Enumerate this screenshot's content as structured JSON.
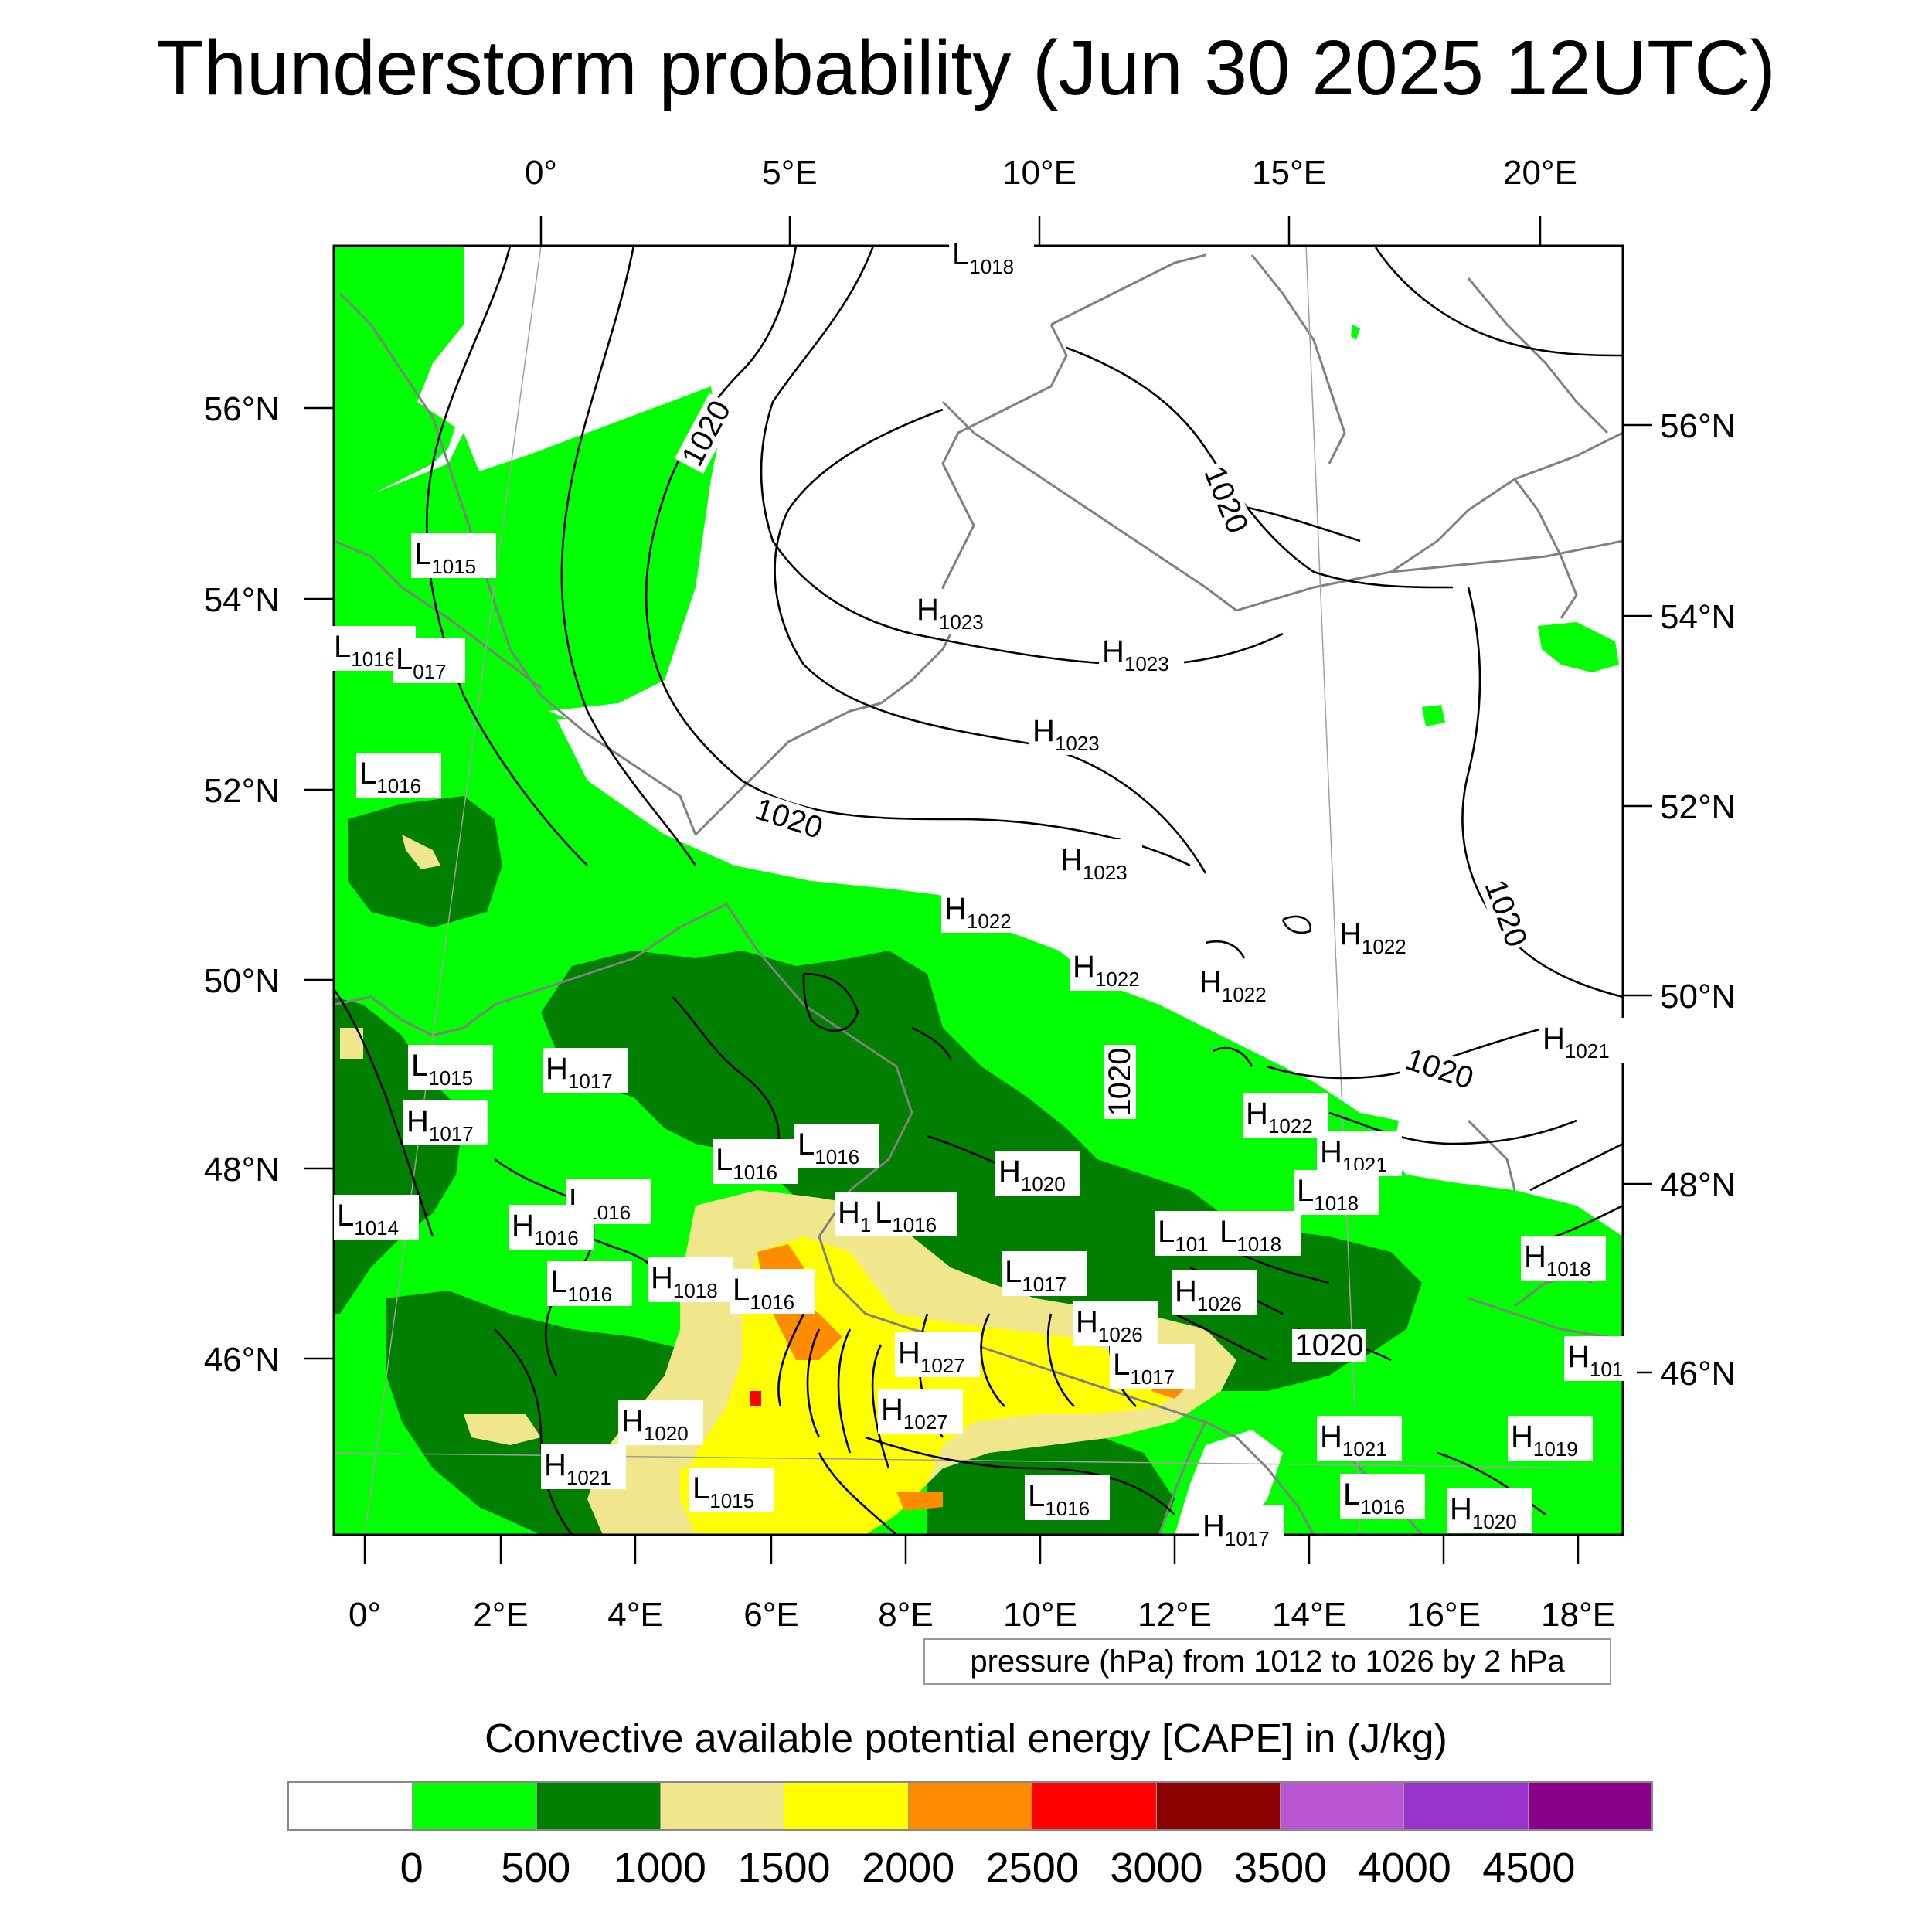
{
  "title": "Thunderstorm probability (Jun 30 2025 12UTC)",
  "lon_top_labels": [
    "0°",
    "5°E",
    "10°E",
    "15°E",
    "20°E"
  ],
  "lon_bottom_labels": [
    "0°",
    "2°E",
    "4°E",
    "6°E",
    "8°E",
    "10°E",
    "12°E",
    "14°E",
    "16°E",
    "18°E"
  ],
  "lat_left_labels": [
    "56°N",
    "54°N",
    "52°N",
    "50°N",
    "48°N",
    "46°N"
  ],
  "lat_right_labels": [
    "56°N",
    "54°N",
    "52°N",
    "50°N",
    "48°N",
    "46°N"
  ],
  "isobar_labels": [
    "1020",
    "1020",
    "1020",
    "1020",
    "1020",
    "1020",
    "1020"
  ],
  "pressure_centers": [
    {
      "t": "L",
      "v": "1018"
    },
    {
      "t": "L",
      "v": "1015"
    },
    {
      "t": "L",
      "v": "1016"
    },
    {
      "t": "L",
      "v": "017"
    },
    {
      "t": "L",
      "v": "1016"
    },
    {
      "t": "H",
      "v": "1023"
    },
    {
      "t": "H",
      "v": "1023"
    },
    {
      "t": "H",
      "v": "1023"
    },
    {
      "t": "H",
      "v": "1023"
    },
    {
      "t": "H",
      "v": "1022"
    },
    {
      "t": "H",
      "v": "1022"
    },
    {
      "t": "H",
      "v": "1022"
    },
    {
      "t": "H",
      "v": "1022"
    },
    {
      "t": "H",
      "v": "1021"
    },
    {
      "t": "L",
      "v": "1015"
    },
    {
      "t": "H",
      "v": "1017"
    },
    {
      "t": "H",
      "v": "1017"
    },
    {
      "t": "H",
      "v": "1022"
    },
    {
      "t": "H",
      "v": "1021"
    },
    {
      "t": "L",
      "v": "1016"
    },
    {
      "t": "L",
      "v": "1016"
    },
    {
      "t": "H",
      "v": "1020"
    },
    {
      "t": "L",
      "v": "1018"
    },
    {
      "t": "L",
      "v": "1016"
    },
    {
      "t": "L",
      "v": "1014"
    },
    {
      "t": "H",
      "v": "1016"
    },
    {
      "t": "H",
      "v": "1"
    },
    {
      "t": "L",
      "v": "1016"
    },
    {
      "t": "L",
      "v": "101"
    },
    {
      "t": "L",
      "v": "1018"
    },
    {
      "t": "H",
      "v": "1018"
    },
    {
      "t": "L",
      "v": "1017"
    },
    {
      "t": "L",
      "v": "1016"
    },
    {
      "t": "H",
      "v": "1018"
    },
    {
      "t": "L",
      "v": "1016"
    },
    {
      "t": "H",
      "v": "1026"
    },
    {
      "t": "H",
      "v": "1026"
    },
    {
      "t": "H",
      "v": "1027"
    },
    {
      "t": "L",
      "v": "1017"
    },
    {
      "t": "H",
      "v": "101"
    },
    {
      "t": "H",
      "v": "1027"
    },
    {
      "t": "H",
      "v": "1020"
    },
    {
      "t": "H",
      "v": "1021"
    },
    {
      "t": "H",
      "v": "1019"
    },
    {
      "t": "H",
      "v": "1021"
    },
    {
      "t": "L",
      "v": "1015"
    },
    {
      "t": "L",
      "v": "1016"
    },
    {
      "t": "L",
      "v": "1016"
    },
    {
      "t": "H",
      "v": "1020"
    },
    {
      "t": "H",
      "v": "1017"
    }
  ],
  "contour_note": "pressure (hPa) from 1012 to 1026 by 2 hPa",
  "colorbar": {
    "title": "Convective available potential energy [CAPE] in (J/kg)",
    "colors": [
      "#ffffff",
      "#00ff00",
      "#007f00",
      "#f0e68c",
      "#ffff00",
      "#ff8c00",
      "#ff0000",
      "#8b0000",
      "#ba55d3",
      "#9932cc",
      "#8b008b"
    ],
    "labels": [
      "0",
      "500",
      "1000",
      "1500",
      "2000",
      "2500",
      "3000",
      "3500",
      "4000",
      "4500"
    ]
  }
}
